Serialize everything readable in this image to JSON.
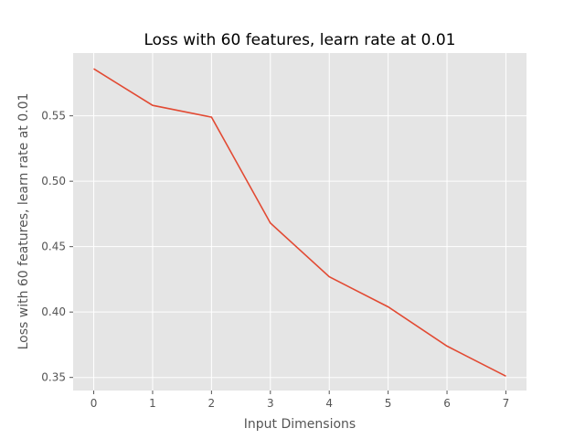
{
  "chart_data": {
    "type": "line",
    "title": "Loss with 60 features, learn rate at 0.01",
    "xlabel": "Input Dimensions",
    "ylabel": "Loss with 60 features, learn rate at 0.01",
    "x": [
      0,
      1,
      2,
      3,
      4,
      5,
      6,
      7
    ],
    "series": [
      {
        "values": [
          0.586,
          0.558,
          0.549,
          0.468,
          0.427,
          0.404,
          0.374,
          0.351
        ]
      }
    ],
    "xlim": [
      -0.35,
      7.35
    ],
    "ylim": [
      0.34,
      0.598
    ],
    "x_ticks": [
      "0",
      "1",
      "2",
      "3",
      "4",
      "5",
      "6",
      "7"
    ],
    "y_ticks": [
      "0.35",
      "0.40",
      "0.45",
      "0.50",
      "0.55"
    ],
    "grid": true,
    "colors": {
      "background": "#e5e5e5",
      "grid": "#ffffff",
      "line": "#e24a33"
    }
  }
}
